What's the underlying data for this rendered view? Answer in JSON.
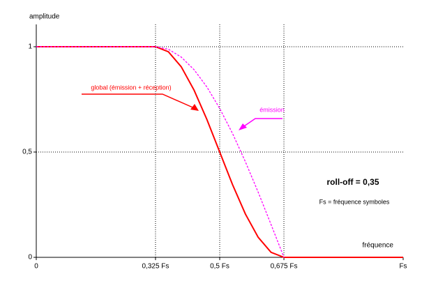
{
  "chart_data": {
    "type": "line",
    "y_label": "amplitude",
    "x_label": "fréquence",
    "annotations": [
      "roll-off = 0,35",
      "Fs = fréquence symboles"
    ],
    "x": [
      0,
      0.325,
      0.36,
      0.395,
      0.43,
      0.465,
      0.5,
      0.535,
      0.57,
      0.605,
      0.64,
      0.675,
      1
    ],
    "series": [
      {
        "name": "global (émission + réception)",
        "color": "#ff0000",
        "dashed": false,
        "values": [
          1,
          1,
          0.976,
          0.905,
          0.794,
          0.655,
          0.5,
          0.345,
          0.206,
          0.095,
          0.024,
          0,
          0
        ]
      },
      {
        "name": "émission",
        "color": "#ff00ff",
        "dashed": true,
        "values": [
          1,
          1,
          0.988,
          0.951,
          0.891,
          0.809,
          0.707,
          0.588,
          0.454,
          0.309,
          0.156,
          0,
          null
        ]
      }
    ],
    "xlim": [
      0,
      1
    ],
    "xticks": [
      0,
      {
        "value": 0.325,
        "label": "0,325 Fs"
      },
      {
        "value": 0.5,
        "label": "0,5 Fs"
      },
      {
        "value": 0.675,
        "label": "0,675 Fs"
      },
      {
        "value": 1,
        "label": "Fs"
      }
    ],
    "ylim": [
      0,
      1
    ],
    "yticks": [
      0,
      {
        "value": 0.5,
        "label": "0,5"
      },
      1
    ],
    "grid": true
  }
}
